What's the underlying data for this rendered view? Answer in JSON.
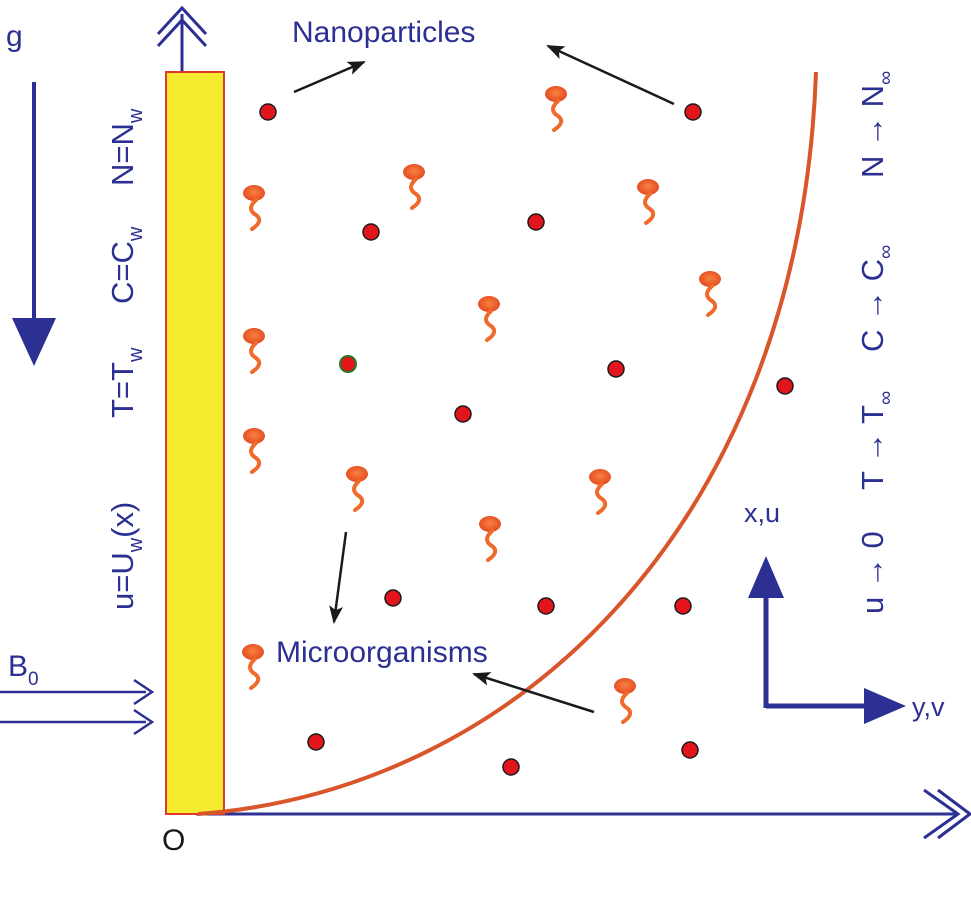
{
  "labels": {
    "nanoparticles": "Nanoparticles",
    "microorganisms": "Microorganisms",
    "gravity": "g",
    "field": "B",
    "field_sub": "0",
    "origin": "O",
    "axis_x": "x,u",
    "axis_y": "y,v"
  },
  "wall_conditions": {
    "velocity": {
      "lhs": "u=U",
      "sub": "w",
      "rhs": "(x)"
    },
    "temperature": {
      "lhs": "T=T",
      "sub": "w"
    },
    "concentration": {
      "lhs": "C=C",
      "sub": "w"
    },
    "microorganism": {
      "lhs": "N=N",
      "sub": "w"
    }
  },
  "far_field_conditions": {
    "velocity": "u → 0",
    "temperature": {
      "lhs": "T → T",
      "sub": "∞"
    },
    "concentration": {
      "lhs": "C → C",
      "sub": "∞"
    },
    "microorganism": {
      "lhs": "N → N",
      "sub": "∞"
    }
  },
  "colors": {
    "navy": "#2b3092",
    "plate_fill": "#f6eb2e",
    "plate_border": "#e03a2a",
    "boundary_curve": "#d9552a",
    "nanoparticle": "#e3151c",
    "microorganism": "#f06a2b",
    "pointer": "#1a1a1a"
  }
}
